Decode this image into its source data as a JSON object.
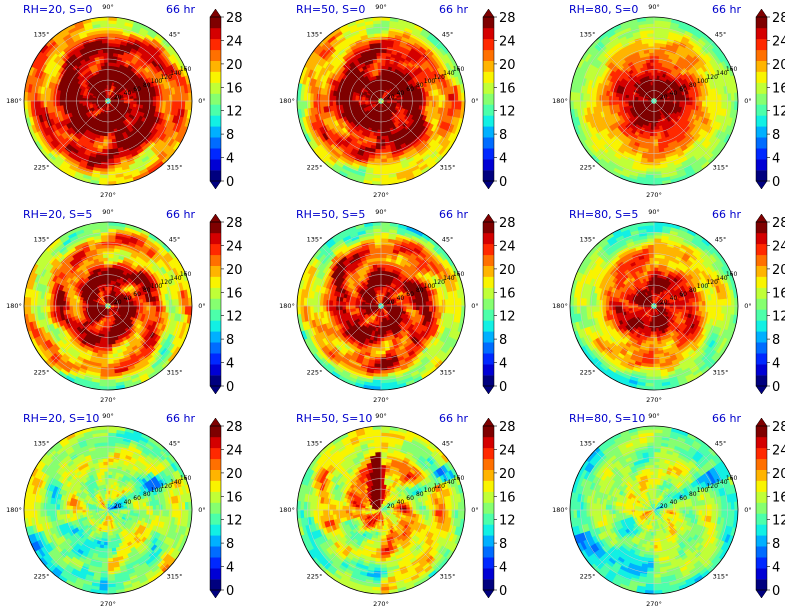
{
  "figure": {
    "colors": {
      "title": "#0000cc",
      "colorbar": [
        "#00007f",
        "#0000d4",
        "#0028ff",
        "#006cff",
        "#00b0ff",
        "#12f0e4",
        "#4cffaa",
        "#86ff70",
        "#c0ff37",
        "#f9f400",
        "#ffb400",
        "#ff7000",
        "#ff2900",
        "#d40000",
        "#7f0000"
      ]
    }
  },
  "chart_data": [
    {
      "type": "heatmap",
      "title_left": "RH=20, S=0",
      "title_right": "66 hr",
      "angle_ticks": [
        "90°",
        "45°",
        "0°",
        "315°",
        "270°",
        "225°",
        "180°",
        "135°"
      ],
      "radial_ticks": [
        "20",
        "40",
        "60",
        "80",
        "100",
        "120",
        "140",
        "160"
      ],
      "rlim": [
        0,
        160
      ],
      "colorbar": {
        "ticks": [
          "0",
          "4",
          "8",
          "12",
          "16",
          "20",
          "24",
          "28"
        ],
        "range": [
          0,
          28
        ],
        "step": 2
      },
      "field": {
        "core": 28,
        "inner_low": 12,
        "ring_mid": 24,
        "ring_outer": 18,
        "edge": 18,
        "eye_radius": 8,
        "core_radius": 60,
        "noise": 5,
        "spiral": 0.6,
        "lowband": false
      }
    },
    {
      "type": "heatmap",
      "title_left": "RH=50, S=0",
      "title_right": "66 hr",
      "angle_ticks": [
        "90°",
        "45°",
        "0°",
        "315°",
        "270°",
        "225°",
        "180°",
        "135°"
      ],
      "radial_ticks": [
        "20",
        "40",
        "60",
        "80",
        "100",
        "120",
        "140",
        "160"
      ],
      "rlim": [
        0,
        160
      ],
      "colorbar": {
        "ticks": [
          "0",
          "4",
          "8",
          "12",
          "16",
          "20",
          "24",
          "28"
        ],
        "range": [
          0,
          28
        ],
        "step": 2
      },
      "field": {
        "core": 28,
        "inner_low": 14,
        "ring_mid": 22,
        "ring_outer": 17,
        "edge": 16,
        "eye_radius": 7,
        "core_radius": 60,
        "noise": 5,
        "spiral": 0.5,
        "lowband": false
      }
    },
    {
      "type": "heatmap",
      "title_left": "RH=80, S=0",
      "title_right": "66 hr",
      "angle_ticks": [
        "90°",
        "45°",
        "0°",
        "315°",
        "270°",
        "225°",
        "180°",
        "135°"
      ],
      "radial_ticks": [
        "20",
        "40",
        "60",
        "80",
        "100",
        "120",
        "140",
        "160"
      ],
      "rlim": [
        0,
        160
      ],
      "colorbar": {
        "ticks": [
          "0",
          "4",
          "8",
          "12",
          "16",
          "20",
          "24",
          "28"
        ],
        "range": [
          0,
          28
        ],
        "step": 2
      },
      "field": {
        "core": 28,
        "inner_low": 12,
        "ring_mid": 19,
        "ring_outer": 14,
        "edge": 13,
        "eye_radius": 5,
        "core_radius": 30,
        "noise": 3,
        "spiral": 0.2,
        "lowband": false
      }
    },
    {
      "type": "heatmap",
      "title_left": "RH=20, S=5",
      "title_right": "66 hr",
      "angle_ticks": [
        "90°",
        "45°",
        "0°",
        "315°",
        "270°",
        "225°",
        "180°",
        "135°"
      ],
      "radial_ticks": [
        "20",
        "40",
        "60",
        "80",
        "100",
        "120",
        "140",
        "160"
      ],
      "rlim": [
        0,
        160
      ],
      "colorbar": {
        "ticks": [
          "0",
          "4",
          "8",
          "12",
          "16",
          "20",
          "24",
          "28"
        ],
        "range": [
          0,
          28
        ],
        "step": 2
      },
      "field": {
        "core": 27,
        "inner_low": 14,
        "ring_mid": 20,
        "ring_outer": 17,
        "edge": 16,
        "eye_radius": 6,
        "core_radius": 40,
        "noise": 5,
        "spiral": 0.7,
        "lowband": false
      }
    },
    {
      "type": "heatmap",
      "title_left": "RH=50, S=5",
      "title_right": "66 hr",
      "angle_ticks": [
        "90°",
        "45°",
        "0°",
        "315°",
        "270°",
        "225°",
        "180°",
        "135°"
      ],
      "radial_ticks": [
        "20",
        "40",
        "60",
        "80",
        "100",
        "120",
        "140",
        "160"
      ],
      "rlim": [
        0,
        160
      ],
      "colorbar": {
        "ticks": [
          "0",
          "4",
          "8",
          "12",
          "16",
          "20",
          "24",
          "28"
        ],
        "range": [
          0,
          28
        ],
        "step": 2
      },
      "field": {
        "core": 26,
        "inner_low": 12,
        "ring_mid": 22,
        "ring_outer": 16,
        "edge": 13,
        "eye_radius": 6,
        "core_radius": 45,
        "noise": 5,
        "spiral": 0.6,
        "lowband": false
      }
    },
    {
      "type": "heatmap",
      "title_left": "RH=80, S=5",
      "title_right": "66 hr",
      "angle_ticks": [
        "90°",
        "45°",
        "0°",
        "315°",
        "270°",
        "225°",
        "180°",
        "135°"
      ],
      "radial_ticks": [
        "20",
        "40",
        "60",
        "80",
        "100",
        "120",
        "140",
        "160"
      ],
      "rlim": [
        0,
        160
      ],
      "colorbar": {
        "ticks": [
          "0",
          "4",
          "8",
          "12",
          "16",
          "20",
          "24",
          "28"
        ],
        "range": [
          0,
          28
        ],
        "step": 2
      },
      "field": {
        "core": 26,
        "inner_low": 12,
        "ring_mid": 19,
        "ring_outer": 14,
        "edge": 12,
        "eye_radius": 5,
        "core_radius": 40,
        "noise": 4,
        "spiral": 0.5,
        "lowband": false
      }
    },
    {
      "type": "heatmap",
      "title_left": "RH=20, S=10",
      "title_right": "66 hr",
      "angle_ticks": [
        "90°",
        "45°",
        "0°",
        "315°",
        "270°",
        "225°",
        "180°",
        "135°"
      ],
      "radial_ticks": [
        "20",
        "40",
        "60",
        "80",
        "100",
        "120",
        "140",
        "160"
      ],
      "rlim": [
        0,
        160
      ],
      "colorbar": {
        "ticks": [
          "0",
          "4",
          "8",
          "12",
          "16",
          "20",
          "24",
          "28"
        ],
        "range": [
          0,
          28
        ],
        "step": 2
      },
      "field": {
        "core": 16,
        "inner_low": 10,
        "ring_mid": 15,
        "ring_outer": 14,
        "edge": 15,
        "eye_radius": 0,
        "core_radius": 20,
        "noise": 5,
        "spiral": 0.4,
        "lowband": true
      }
    },
    {
      "type": "heatmap",
      "title_left": "RH=50, S=10",
      "title_right": "66 hr",
      "angle_ticks": [
        "90°",
        "45°",
        "0°",
        "315°",
        "270°",
        "225°",
        "180°",
        "135°"
      ],
      "radial_ticks": [
        "20",
        "40",
        "60",
        "80",
        "100",
        "120",
        "140",
        "160"
      ],
      "rlim": [
        0,
        160
      ],
      "colorbar": {
        "ticks": [
          "0",
          "4",
          "8",
          "12",
          "16",
          "20",
          "24",
          "28"
        ],
        "range": [
          0,
          28
        ],
        "step": 2
      },
      "field": {
        "core": 20,
        "inner_low": 14,
        "ring_mid": 18,
        "ring_outer": 16,
        "edge": 15,
        "eye_radius": 0,
        "core_radius": 30,
        "noise": 5,
        "spiral": 0.5,
        "lowband": true,
        "hot_blob": 27
      }
    },
    {
      "type": "heatmap",
      "title_left": "RH=80, S=10",
      "title_right": "66 hr",
      "angle_ticks": [
        "90°",
        "45°",
        "0°",
        "315°",
        "270°",
        "225°",
        "180°",
        "135°"
      ],
      "radial_ticks": [
        "20",
        "40",
        "60",
        "80",
        "100",
        "120",
        "140",
        "160"
      ],
      "rlim": [
        0,
        160
      ],
      "colorbar": {
        "ticks": [
          "0",
          "4",
          "8",
          "12",
          "16",
          "20",
          "24",
          "28"
        ],
        "range": [
          0,
          28
        ],
        "step": 2
      },
      "field": {
        "core": 17,
        "inner_low": 12,
        "ring_mid": 15,
        "ring_outer": 13,
        "edge": 12,
        "eye_radius": 0,
        "core_radius": 20,
        "noise": 4,
        "spiral": 0.4,
        "lowband": true
      }
    }
  ]
}
